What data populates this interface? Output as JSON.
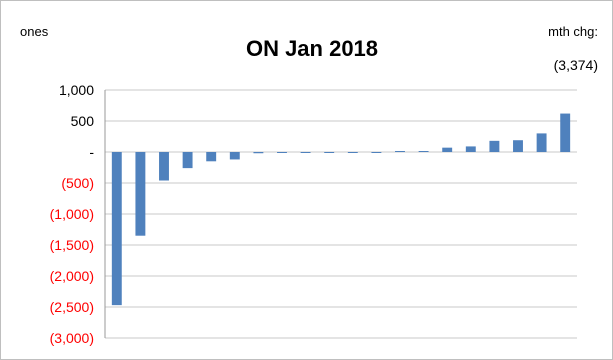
{
  "chart_data": {
    "type": "bar",
    "title": "ON Jan 2018",
    "unit_label": "ones",
    "corner_label": "mth chg:",
    "corner_value": "(3,374)",
    "ylim": [
      -3000,
      1000
    ],
    "yticks": [
      {
        "value": 1000,
        "label": "1,000"
      },
      {
        "value": 500,
        "label": "500"
      },
      {
        "value": 0,
        "label": "-"
      },
      {
        "value": -500,
        "label": "(500)"
      },
      {
        "value": -1000,
        "label": "(1,000)"
      },
      {
        "value": -1500,
        "label": "(1,500)"
      },
      {
        "value": -2000,
        "label": "(2,000)"
      },
      {
        "value": -2500,
        "label": "(2,500)"
      },
      {
        "value": -3000,
        "label": "(3,000)"
      }
    ],
    "values": [
      -2470,
      -1350,
      -460,
      -260,
      -150,
      -120,
      -20,
      -10,
      -5,
      -5,
      -5,
      -5,
      5,
      10,
      70,
      90,
      180,
      190,
      300,
      620
    ],
    "grid": true,
    "legend": "none",
    "bar_color": "#4f81bd",
    "negative_label_color": "#ff0000",
    "positive_label_color": "#000000"
  }
}
